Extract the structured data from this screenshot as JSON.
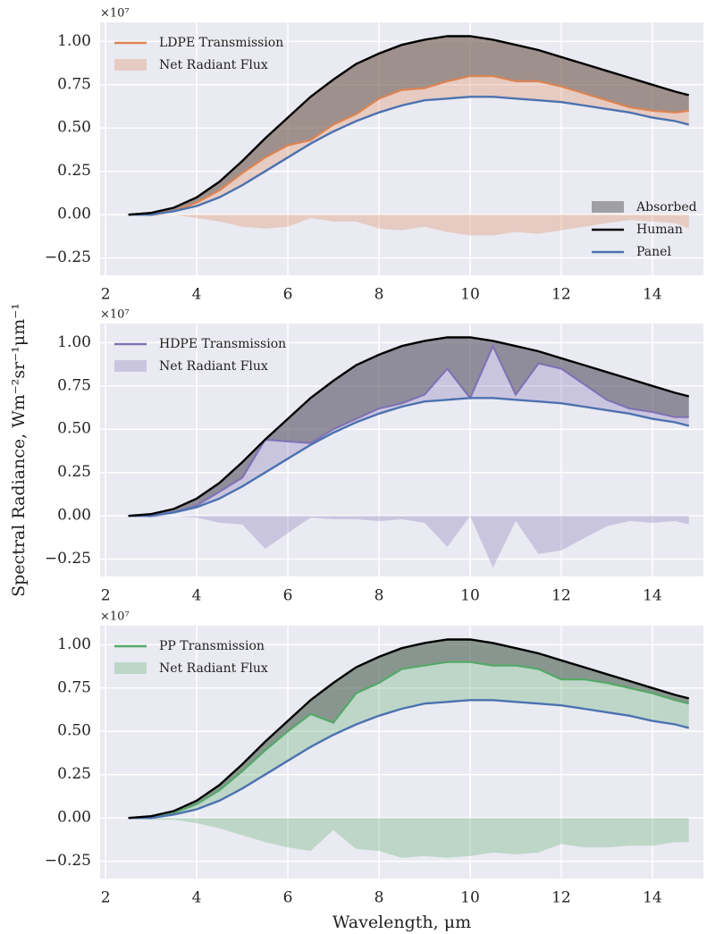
{
  "chart_data": [
    {
      "type": "line",
      "offset_label": "×10⁷",
      "x": [
        2.5,
        3,
        3.5,
        4,
        4.5,
        5,
        5.5,
        6,
        6.5,
        7,
        7.5,
        8,
        8.5,
        9,
        9.5,
        10,
        10.5,
        11,
        11.5,
        12,
        12.5,
        13,
        13.5,
        14,
        14.5,
        14.8
      ],
      "xlim": [
        1.88,
        15.12
      ],
      "xticks": [
        2,
        4,
        6,
        8,
        10,
        12,
        14
      ],
      "ylim": [
        -0.35,
        1.11
      ],
      "yticks": [
        {
          "value": -0.25,
          "label": "−0.25"
        },
        {
          "value": 0,
          "label": "0.00"
        },
        {
          "value": 0.25,
          "label": "0.25"
        },
        {
          "value": 0.5,
          "label": "0.50"
        },
        {
          "value": 0.75,
          "label": "0.75"
        },
        {
          "value": 1,
          "label": "1.00"
        }
      ],
      "grid": true,
      "series": [
        {
          "name": "LDPE Transmission",
          "kind": "transmission",
          "color": "#dd8452",
          "legend": "upper left",
          "values": [
            0,
            0.01,
            0.02,
            0.07,
            0.14,
            0.24,
            0.33,
            0.4,
            0.43,
            0.52,
            0.58,
            0.67,
            0.72,
            0.73,
            0.77,
            0.8,
            0.8,
            0.77,
            0.77,
            0.74,
            0.7,
            0.66,
            0.62,
            0.6,
            0.59,
            0.6
          ]
        },
        {
          "name": "Net Radiant Flux",
          "kind": "net",
          "color": "#dd8452",
          "legend": "upper left",
          "values": [
            0,
            -0.01,
            0,
            -0.02,
            -0.04,
            -0.07,
            -0.08,
            -0.07,
            -0.02,
            -0.04,
            -0.04,
            -0.08,
            -0.09,
            -0.07,
            -0.1,
            -0.12,
            -0.12,
            -0.1,
            -0.11,
            -0.09,
            -0.07,
            -0.05,
            -0.03,
            -0.04,
            -0.05,
            -0.08
          ]
        },
        {
          "name": "Absorbed",
          "kind": "absorbed",
          "color": "#555555",
          "legend": "lower right"
        },
        {
          "name": "Human",
          "kind": "human",
          "color": "#000000",
          "legend": "lower right",
          "values": [
            0,
            0.01,
            0.04,
            0.1,
            0.19,
            0.31,
            0.44,
            0.56,
            0.68,
            0.78,
            0.87,
            0.93,
            0.98,
            1.01,
            1.03,
            1.03,
            1.01,
            0.98,
            0.95,
            0.91,
            0.87,
            0.83,
            0.79,
            0.75,
            0.71,
            0.69
          ]
        },
        {
          "name": "Panel",
          "kind": "panel",
          "color": "#4c72b0",
          "legend": "lower right",
          "values": [
            0,
            0,
            0.02,
            0.05,
            0.1,
            0.17,
            0.25,
            0.33,
            0.41,
            0.48,
            0.54,
            0.59,
            0.63,
            0.66,
            0.67,
            0.68,
            0.68,
            0.67,
            0.66,
            0.65,
            0.63,
            0.61,
            0.59,
            0.56,
            0.54,
            0.52
          ]
        }
      ]
    },
    {
      "type": "line",
      "offset_label": "×10⁷",
      "ylabel": "Spectral Radiance, Wm⁻²sr⁻¹μm⁻¹",
      "x": [
        2.5,
        3,
        3.5,
        4,
        4.5,
        5,
        5.5,
        6,
        6.5,
        7,
        7.5,
        8,
        8.5,
        9,
        9.5,
        10,
        10.5,
        11,
        11.5,
        12,
        12.5,
        13,
        13.5,
        14,
        14.5,
        14.8
      ],
      "xlim": [
        1.88,
        15.12
      ],
      "xticks": [
        2,
        4,
        6,
        8,
        10,
        12,
        14
      ],
      "ylim": [
        -0.35,
        1.11
      ],
      "yticks": [
        {
          "value": -0.25,
          "label": "−0.25"
        },
        {
          "value": 0,
          "label": "0.00"
        },
        {
          "value": 0.25,
          "label": "0.25"
        },
        {
          "value": 0.5,
          "label": "0.50"
        },
        {
          "value": 0.75,
          "label": "0.75"
        },
        {
          "value": 1,
          "label": "1.00"
        }
      ],
      "grid": true,
      "series": [
        {
          "name": "HDPE Transmission",
          "kind": "transmission",
          "color": "#8172b3",
          "legend": "upper left",
          "values": [
            0,
            0.01,
            0.02,
            0.06,
            0.14,
            0.22,
            0.44,
            0.43,
            0.42,
            0.5,
            0.56,
            0.62,
            0.65,
            0.7,
            0.85,
            0.68,
            0.98,
            0.7,
            0.88,
            0.85,
            0.76,
            0.67,
            0.62,
            0.6,
            0.57,
            0.57
          ]
        },
        {
          "name": "Net Radiant Flux",
          "kind": "net",
          "color": "#8172b3",
          "legend": "upper left",
          "values": [
            0,
            -0.01,
            0,
            -0.01,
            -0.04,
            -0.05,
            -0.19,
            -0.1,
            -0.01,
            -0.02,
            -0.02,
            -0.03,
            -0.02,
            -0.04,
            -0.18,
            0,
            -0.3,
            -0.03,
            -0.22,
            -0.2,
            -0.13,
            -0.06,
            -0.03,
            -0.04,
            -0.03,
            -0.05
          ]
        },
        {
          "kind": "absorbed",
          "color": "#555555"
        },
        {
          "kind": "human",
          "color": "#000000",
          "values": [
            0,
            0.01,
            0.04,
            0.1,
            0.19,
            0.31,
            0.44,
            0.56,
            0.68,
            0.78,
            0.87,
            0.93,
            0.98,
            1.01,
            1.03,
            1.03,
            1.01,
            0.98,
            0.95,
            0.91,
            0.87,
            0.83,
            0.79,
            0.75,
            0.71,
            0.69
          ]
        },
        {
          "kind": "panel",
          "color": "#4c72b0",
          "values": [
            0,
            0,
            0.02,
            0.05,
            0.1,
            0.17,
            0.25,
            0.33,
            0.41,
            0.48,
            0.54,
            0.59,
            0.63,
            0.66,
            0.67,
            0.68,
            0.68,
            0.67,
            0.66,
            0.65,
            0.63,
            0.61,
            0.59,
            0.56,
            0.54,
            0.52
          ]
        }
      ]
    },
    {
      "type": "line",
      "offset_label": "×10⁷",
      "xlabel": "Wavelength, μm",
      "x": [
        2.5,
        3,
        3.5,
        4,
        4.5,
        5,
        5.5,
        6,
        6.5,
        7,
        7.5,
        8,
        8.5,
        9,
        9.5,
        10,
        10.5,
        11,
        11.5,
        12,
        12.5,
        13,
        13.5,
        14,
        14.5,
        14.8
      ],
      "xlim": [
        1.88,
        15.12
      ],
      "xticks": [
        2,
        4,
        6,
        8,
        10,
        12,
        14
      ],
      "ylim": [
        -0.35,
        1.11
      ],
      "yticks": [
        {
          "value": -0.25,
          "label": "−0.25"
        },
        {
          "value": 0,
          "label": "0.00"
        },
        {
          "value": 0.25,
          "label": "0.25"
        },
        {
          "value": 0.5,
          "label": "0.50"
        },
        {
          "value": 0.75,
          "label": "0.75"
        },
        {
          "value": 1,
          "label": "1.00"
        }
      ],
      "grid": true,
      "series": [
        {
          "name": "PP Transmission",
          "kind": "transmission",
          "color": "#55a868",
          "legend": "upper left",
          "values": [
            0,
            0.01,
            0.03,
            0.08,
            0.16,
            0.27,
            0.39,
            0.5,
            0.6,
            0.55,
            0.72,
            0.78,
            0.86,
            0.88,
            0.9,
            0.9,
            0.88,
            0.88,
            0.86,
            0.8,
            0.8,
            0.78,
            0.75,
            0.72,
            0.68,
            0.66
          ]
        },
        {
          "name": "Net Radiant Flux",
          "kind": "net",
          "color": "#55a868",
          "legend": "upper left",
          "values": [
            0,
            -0.01,
            -0.01,
            -0.03,
            -0.06,
            -0.1,
            -0.14,
            -0.17,
            -0.19,
            -0.07,
            -0.18,
            -0.19,
            -0.23,
            -0.22,
            -0.23,
            -0.22,
            -0.2,
            -0.21,
            -0.2,
            -0.15,
            -0.17,
            -0.17,
            -0.16,
            -0.16,
            -0.14,
            -0.14
          ]
        },
        {
          "kind": "absorbed",
          "color": "#555555"
        },
        {
          "kind": "human",
          "color": "#000000",
          "values": [
            0,
            0.01,
            0.04,
            0.1,
            0.19,
            0.31,
            0.44,
            0.56,
            0.68,
            0.78,
            0.87,
            0.93,
            0.98,
            1.01,
            1.03,
            1.03,
            1.01,
            0.98,
            0.95,
            0.91,
            0.87,
            0.83,
            0.79,
            0.75,
            0.71,
            0.69
          ]
        },
        {
          "kind": "panel",
          "color": "#4c72b0",
          "values": [
            0,
            0,
            0.02,
            0.05,
            0.1,
            0.17,
            0.25,
            0.33,
            0.41,
            0.48,
            0.54,
            0.59,
            0.63,
            0.66,
            0.67,
            0.68,
            0.68,
            0.67,
            0.66,
            0.65,
            0.63,
            0.61,
            0.59,
            0.56,
            0.54,
            0.52
          ]
        }
      ]
    }
  ]
}
